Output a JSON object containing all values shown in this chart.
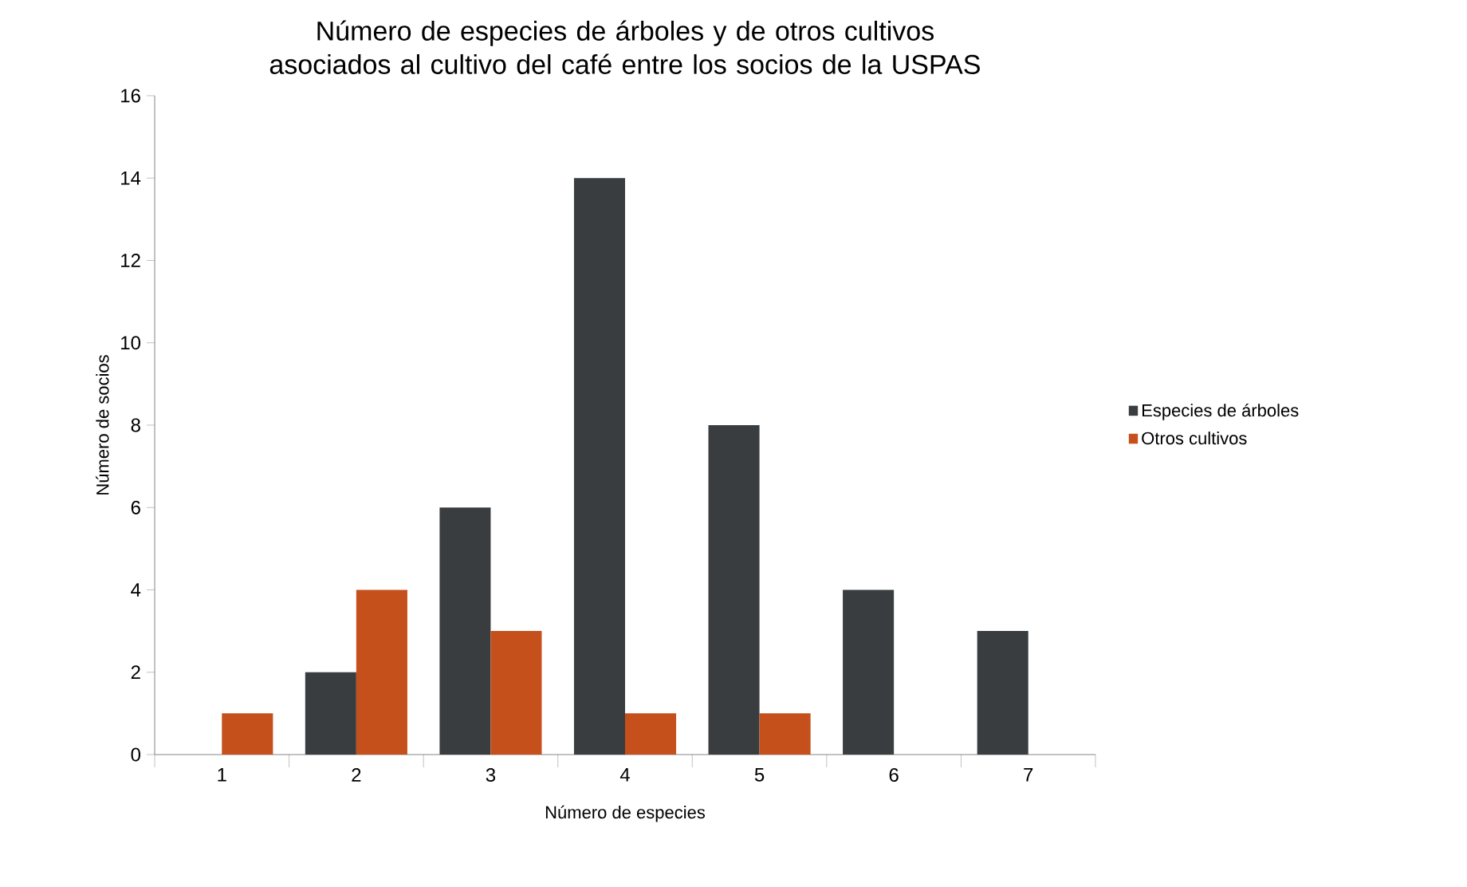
{
  "chart_data": {
    "type": "bar",
    "title": "Número de especies de árboles y de otros cultivos asociados al cultivo del café entre los socios de la USPAS",
    "xlabel": "Número de especies",
    "ylabel": "Número de socios",
    "categories": [
      "1",
      "2",
      "3",
      "4",
      "5",
      "6",
      "7"
    ],
    "series": [
      {
        "name": "Especies de árboles",
        "color": "#3a3d40",
        "values": [
          null,
          2,
          6,
          14,
          8,
          4,
          3
        ]
      },
      {
        "name": "Otros cultivos",
        "color": "#c5501c",
        "values": [
          1,
          4,
          3,
          1,
          1,
          null,
          null
        ]
      }
    ],
    "ylim": [
      0,
      16
    ],
    "yticks": [
      0,
      2,
      4,
      6,
      8,
      10,
      12,
      14,
      16
    ],
    "grid": false,
    "legend": "right"
  }
}
